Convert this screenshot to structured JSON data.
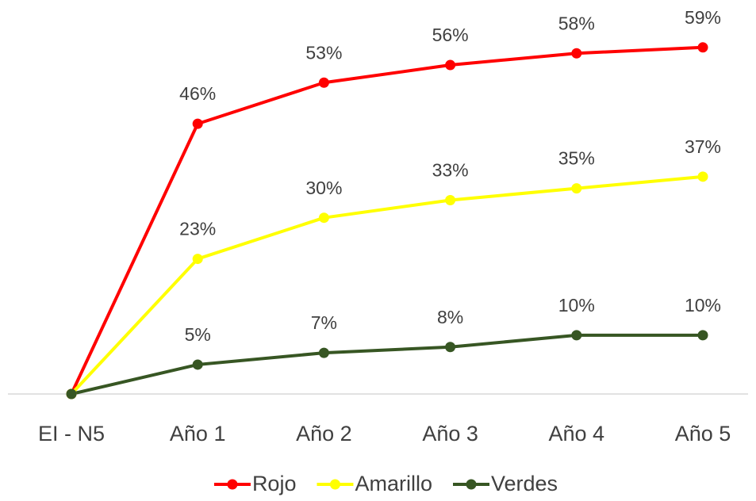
{
  "chart_data": {
    "type": "line",
    "categories": [
      "EI - N5",
      "Año 1",
      "Año 2",
      "Año 3",
      "Año 4",
      "Año 5"
    ],
    "ylim": [
      0,
      60
    ],
    "legend": "bottom",
    "series": [
      {
        "name": "Rojo",
        "color": "#ff0000",
        "values": [
          0,
          46,
          53,
          56,
          58,
          59
        ],
        "value_labels": [
          null,
          "46%",
          "53%",
          "56%",
          "58%",
          "59%"
        ]
      },
      {
        "name": "Amarillo",
        "color": "#ffff00",
        "values": [
          0,
          23,
          30,
          33,
          35,
          37
        ],
        "value_labels": [
          null,
          "23%",
          "30%",
          "33%",
          "35%",
          "37%"
        ]
      },
      {
        "name": "Verdes",
        "color": "#375623",
        "values": [
          0,
          5,
          7,
          8,
          10,
          10
        ],
        "value_labels": [
          null,
          "5%",
          "7%",
          "8%",
          "10%",
          "10%"
        ]
      }
    ]
  }
}
